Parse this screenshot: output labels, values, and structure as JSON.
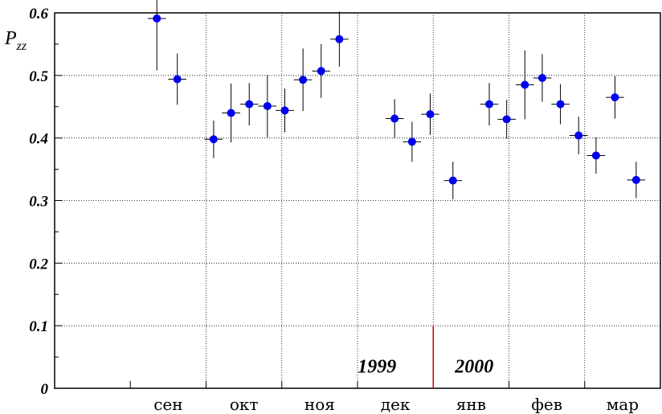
{
  "chart_data": {
    "type": "scatter",
    "ylabel": "P",
    "ylabel_sub": "zz",
    "ylim": [
      0,
      0.6
    ],
    "yticks": [
      "0",
      "0.1",
      "0.2",
      "0.3",
      "0.4",
      "0.5",
      "0.6"
    ],
    "grid": true,
    "categories": [
      "сен",
      "окт",
      "ноя",
      "дек",
      "янв",
      "фев",
      "мар"
    ],
    "annotations": {
      "left_year": "1999",
      "right_year": "2000"
    },
    "colors": {
      "marker": "#0000ee",
      "divider": "#dd0000",
      "error_bar": "#000000"
    },
    "points": [
      {
        "x": 1.35,
        "y": 0.591,
        "err": 0.083,
        "xerr": 0.12
      },
      {
        "x": 1.62,
        "y": 0.494,
        "err": 0.041,
        "xerr": 0.12
      },
      {
        "x": 2.1,
        "y": 0.398,
        "err": 0.03,
        "xerr": 0.12
      },
      {
        "x": 2.33,
        "y": 0.44,
        "err": 0.047,
        "xerr": 0.12
      },
      {
        "x": 2.57,
        "y": 0.454,
        "err": 0.034,
        "xerr": 0.12
      },
      {
        "x": 2.81,
        "y": 0.451,
        "err": 0.05,
        "xerr": 0.12
      },
      {
        "x": 3.04,
        "y": 0.444,
        "err": 0.035,
        "xerr": 0.12
      },
      {
        "x": 3.28,
        "y": 0.493,
        "err": 0.05,
        "xerr": 0.12
      },
      {
        "x": 3.52,
        "y": 0.507,
        "err": 0.043,
        "xerr": 0.12
      },
      {
        "x": 3.76,
        "y": 0.558,
        "err": 0.044,
        "xerr": 0.12
      },
      {
        "x": 4.49,
        "y": 0.431,
        "err": 0.031,
        "xerr": 0.12
      },
      {
        "x": 4.72,
        "y": 0.394,
        "err": 0.032,
        "xerr": 0.12
      },
      {
        "x": 4.96,
        "y": 0.438,
        "err": 0.033,
        "xerr": 0.12
      },
      {
        "x": 5.26,
        "y": 0.332,
        "err": 0.03,
        "xerr": 0.12
      },
      {
        "x": 5.74,
        "y": 0.454,
        "err": 0.034,
        "xerr": 0.12
      },
      {
        "x": 5.97,
        "y": 0.43,
        "err": 0.031,
        "xerr": 0.12
      },
      {
        "x": 6.21,
        "y": 0.485,
        "err": 0.055,
        "xerr": 0.12
      },
      {
        "x": 6.44,
        "y": 0.496,
        "err": 0.038,
        "xerr": 0.12
      },
      {
        "x": 6.68,
        "y": 0.454,
        "err": 0.032,
        "xerr": 0.12
      },
      {
        "x": 6.92,
        "y": 0.404,
        "err": 0.03,
        "xerr": 0.12
      },
      {
        "x": 7.15,
        "y": 0.372,
        "err": 0.029,
        "xerr": 0.12
      },
      {
        "x": 7.4,
        "y": 0.465,
        "err": 0.034,
        "xerr": 0.12
      },
      {
        "x": 7.68,
        "y": 0.333,
        "err": 0.029,
        "xerr": 0.12
      }
    ]
  }
}
